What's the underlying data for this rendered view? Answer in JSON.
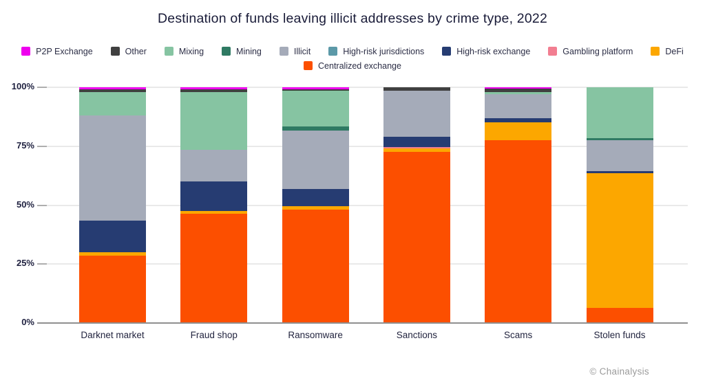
{
  "credit": {
    "text": "© Chainalysis"
  },
  "chart_data": {
    "type": "bar",
    "subtype": "stacked-100",
    "title": "Destination of funds leaving illicit addresses by crime type, 2022",
    "xlabel": "",
    "ylabel": "",
    "ylim": [
      0,
      100
    ],
    "grid": true,
    "legend_position": "top",
    "legend_row_break": 9,
    "y_ticks": [
      {
        "label": "0%",
        "value": 0
      },
      {
        "label": "25%",
        "value": 25
      },
      {
        "label": "50%",
        "value": 50
      },
      {
        "label": "75%",
        "value": 75
      },
      {
        "label": "100%",
        "value": 100
      }
    ],
    "categories": [
      "Darknet market",
      "Fraud shop",
      "Ransomware",
      "Sanctions",
      "Scams",
      "Stolen funds"
    ],
    "series": [
      {
        "name": "P2P Exchange",
        "color": "#ee00ee",
        "values": [
          1,
          1,
          1,
          0,
          0.5,
          0
        ]
      },
      {
        "name": "Other",
        "color": "#404040",
        "values": [
          1,
          1,
          0.5,
          1.5,
          1.5,
          0
        ]
      },
      {
        "name": "Mixing",
        "color": "#86c4a2",
        "values": [
          10,
          24.5,
          15,
          0,
          1,
          21.5
        ]
      },
      {
        "name": "Mining",
        "color": "#2f7a63",
        "values": [
          0,
          0,
          2,
          0,
          0,
          1
        ]
      },
      {
        "name": "Illicit",
        "color": "#a5abb9",
        "values": [
          44.5,
          13.5,
          24.5,
          19.5,
          10,
          13
        ]
      },
      {
        "name": "High-risk jurisdictions",
        "color": "#5c99a8",
        "values": [
          0,
          0,
          0,
          0,
          0,
          0
        ]
      },
      {
        "name": "High-risk exchange",
        "color": "#263c72",
        "values": [
          13.5,
          12.5,
          7.5,
          4.5,
          2,
          1
        ]
      },
      {
        "name": "Gambling platform",
        "color": "#f27e91",
        "values": [
          0,
          0,
          0,
          0.5,
          0,
          0
        ]
      },
      {
        "name": "DeFi",
        "color": "#fca700",
        "values": [
          1.5,
          1,
          1.5,
          1.5,
          7.5,
          57
        ]
      },
      {
        "name": "Centralized exchange",
        "color": "#fc4f00",
        "values": [
          28.5,
          46.5,
          48,
          72.5,
          77.5,
          6.5
        ]
      }
    ]
  }
}
